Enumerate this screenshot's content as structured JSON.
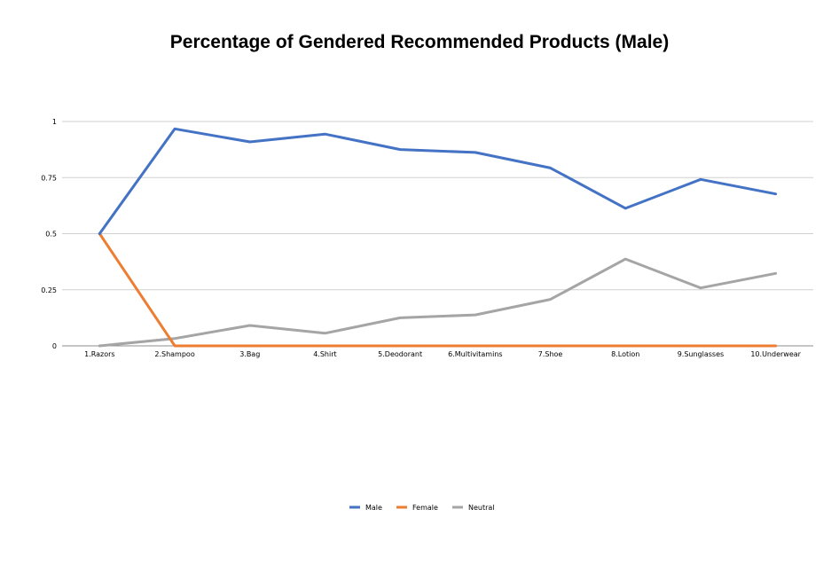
{
  "chart_data": {
    "type": "line",
    "title": "Percentage of Gendered Recommended Products (Male)",
    "xlabel": "",
    "ylabel": "",
    "categories": [
      "1.Razors",
      "2.Shampoo",
      "3.Bag",
      "4.Shirt",
      "5.Deodorant",
      "6.Multivitamins",
      "7.Shoe",
      "8.Lotion",
      "9.Sunglasses",
      "10.Underwear"
    ],
    "ylim": [
      0,
      1
    ],
    "yticks": [
      "0",
      "0.25",
      "0.5",
      "0.75",
      "1"
    ],
    "grid": true,
    "legend_position": "bottom",
    "series": [
      {
        "name": "Male",
        "color": "#4472C4",
        "values": [
          0.5,
          0.967,
          0.909,
          0.944,
          0.875,
          0.862,
          0.793,
          0.613,
          0.742,
          0.677
        ]
      },
      {
        "name": "Female",
        "color": "#ED7D31",
        "values": [
          0.5,
          0,
          0,
          0,
          0,
          0,
          0,
          0,
          0,
          0
        ]
      },
      {
        "name": "Neutral",
        "color": "#A5A5A5",
        "values": [
          0,
          0.033,
          0.091,
          0.056,
          0.125,
          0.138,
          0.207,
          0.387,
          0.258,
          0.323
        ]
      }
    ]
  }
}
